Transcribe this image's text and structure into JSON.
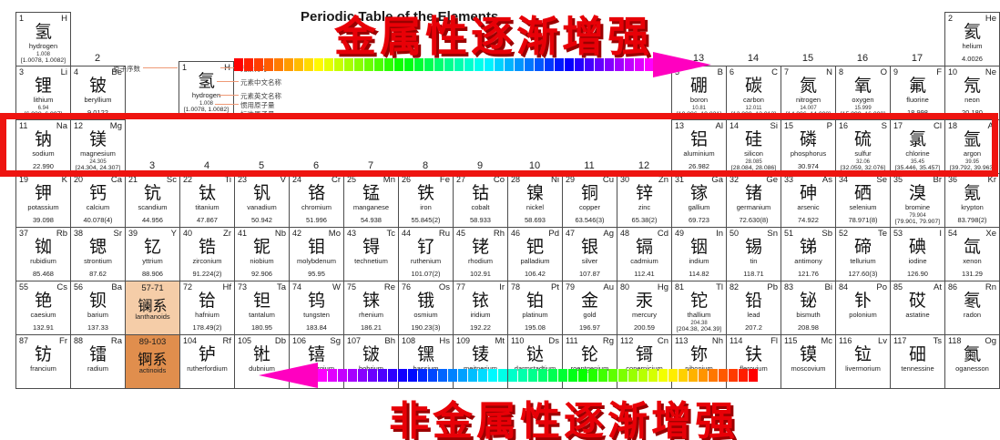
{
  "title": "Periodic Table of the Elements",
  "annotations": {
    "top_text": "金属性逐渐增强",
    "bottom_text": "非金属性逐渐增强",
    "top_arrow_direction": "right",
    "bottom_arrow_direction": "left",
    "text_color": "#e80007",
    "highlight_box_color": "#ee1410"
  },
  "legend": {
    "atomic_number_label": "原子序数",
    "symbol_label": "元素符号",
    "zh_name_label": "元素中文名称",
    "en_name_label": "元素英文名称",
    "conventional_mass_label": "惯用原子量",
    "standard_mass_label": "标准原子量",
    "sample": {
      "z": "1",
      "symbol": "H",
      "zh": "氢",
      "en": "hydrogen",
      "mass": "1.008",
      "mass_interval": "[1.0078, 1.0082]"
    }
  },
  "group_labels_row2": [
    {
      "g": 2,
      "label": "2"
    },
    {
      "g": 13,
      "label": "13"
    },
    {
      "g": 14,
      "label": "14"
    },
    {
      "g": 15,
      "label": "15"
    },
    {
      "g": 16,
      "label": "16"
    },
    {
      "g": 17,
      "label": "17"
    }
  ],
  "group_labels_row4": [
    {
      "g": 3,
      "label": "3"
    },
    {
      "g": 4,
      "label": "4"
    },
    {
      "g": 5,
      "label": "5"
    },
    {
      "g": 6,
      "label": "6"
    },
    {
      "g": 7,
      "label": "7"
    },
    {
      "g": 8,
      "label": "8"
    },
    {
      "g": 9,
      "label": "9"
    },
    {
      "g": 10,
      "label": "10"
    },
    {
      "g": 11,
      "label": "11"
    },
    {
      "g": 12,
      "label": "12"
    }
  ],
  "series_cells": [
    {
      "p": 6,
      "g": 3,
      "range": "57-71",
      "zh": "镧系",
      "en": "lanthanoids",
      "bg": "#f5cda8"
    },
    {
      "p": 7,
      "g": 3,
      "range": "89-103",
      "zh": "锕系",
      "en": "actinoids",
      "bg": "#e08e4d"
    }
  ],
  "elements": [
    {
      "p": 1,
      "g": 1,
      "z": "1",
      "s": "H",
      "zh": "氢",
      "en": "hydrogen",
      "m": "1.008",
      "mi": "[1.0078, 1.0082]"
    },
    {
      "p": 1,
      "g": 18,
      "z": "2",
      "s": "He",
      "zh": "氦",
      "en": "helium",
      "m": "4.0026"
    },
    {
      "p": 2,
      "g": 1,
      "z": "3",
      "s": "Li",
      "zh": "锂",
      "en": "lithium",
      "m": "6.94",
      "mi": "[6.938, 6.997]"
    },
    {
      "p": 2,
      "g": 2,
      "z": "4",
      "s": "Be",
      "zh": "铍",
      "en": "beryllium",
      "m": "9.0122"
    },
    {
      "p": 2,
      "g": 13,
      "z": "5",
      "s": "B",
      "zh": "硼",
      "en": "boron",
      "m": "10.81",
      "mi": "[10.806, 10.821]"
    },
    {
      "p": 2,
      "g": 14,
      "z": "6",
      "s": "C",
      "zh": "碳",
      "en": "carbon",
      "m": "12.011",
      "mi": "[12.009, 12.012]"
    },
    {
      "p": 2,
      "g": 15,
      "z": "7",
      "s": "N",
      "zh": "氮",
      "en": "nitrogen",
      "m": "14.007",
      "mi": "[14.006, 14.008]"
    },
    {
      "p": 2,
      "g": 16,
      "z": "8",
      "s": "O",
      "zh": "氧",
      "en": "oxygen",
      "m": "15.999",
      "mi": "[15.999, 16.000]"
    },
    {
      "p": 2,
      "g": 17,
      "z": "9",
      "s": "F",
      "zh": "氟",
      "en": "fluorine",
      "m": "18.998"
    },
    {
      "p": 2,
      "g": 18,
      "z": "10",
      "s": "Ne",
      "zh": "氖",
      "en": "neon",
      "m": "20.180"
    },
    {
      "p": 3,
      "g": 1,
      "z": "11",
      "s": "Na",
      "zh": "钠",
      "en": "sodium",
      "m": "22.990"
    },
    {
      "p": 3,
      "g": 2,
      "z": "12",
      "s": "Mg",
      "zh": "镁",
      "en": "magnesium",
      "m": "24.305",
      "mi": "[24.304, 24.307]"
    },
    {
      "p": 3,
      "g": 13,
      "z": "13",
      "s": "Al",
      "zh": "铝",
      "en": "aluminium",
      "m": "26.982"
    },
    {
      "p": 3,
      "g": 14,
      "z": "14",
      "s": "Si",
      "zh": "硅",
      "en": "silicon",
      "m": "28.085",
      "mi": "[28.084, 28.086]"
    },
    {
      "p": 3,
      "g": 15,
      "z": "15",
      "s": "P",
      "zh": "磷",
      "en": "phosphorus",
      "m": "30.974"
    },
    {
      "p": 3,
      "g": 16,
      "z": "16",
      "s": "S",
      "zh": "硫",
      "en": "sulfur",
      "m": "32.06",
      "mi": "[32.059, 32.076]"
    },
    {
      "p": 3,
      "g": 17,
      "z": "17",
      "s": "Cl",
      "zh": "氯",
      "en": "chlorine",
      "m": "35.45",
      "mi": "[35.446, 35.457]"
    },
    {
      "p": 3,
      "g": 18,
      "z": "18",
      "s": "Ar",
      "zh": "氩",
      "en": "argon",
      "m": "39.95",
      "mi": "[39.792, 39.963]"
    },
    {
      "p": 4,
      "g": 1,
      "z": "19",
      "s": "K",
      "zh": "钾",
      "en": "potassium",
      "m": "39.098"
    },
    {
      "p": 4,
      "g": 2,
      "z": "20",
      "s": "Ca",
      "zh": "钙",
      "en": "calcium",
      "m": "40.078(4)"
    },
    {
      "p": 4,
      "g": 3,
      "z": "21",
      "s": "Sc",
      "zh": "钪",
      "en": "scandium",
      "m": "44.956"
    },
    {
      "p": 4,
      "g": 4,
      "z": "22",
      "s": "Ti",
      "zh": "钛",
      "en": "titanium",
      "m": "47.867"
    },
    {
      "p": 4,
      "g": 5,
      "z": "23",
      "s": "V",
      "zh": "钒",
      "en": "vanadium",
      "m": "50.942"
    },
    {
      "p": 4,
      "g": 6,
      "z": "24",
      "s": "Cr",
      "zh": "铬",
      "en": "chromium",
      "m": "51.996"
    },
    {
      "p": 4,
      "g": 7,
      "z": "25",
      "s": "Mn",
      "zh": "锰",
      "en": "manganese",
      "m": "54.938"
    },
    {
      "p": 4,
      "g": 8,
      "z": "26",
      "s": "Fe",
      "zh": "铁",
      "en": "iron",
      "m": "55.845(2)"
    },
    {
      "p": 4,
      "g": 9,
      "z": "27",
      "s": "Co",
      "zh": "钴",
      "en": "cobalt",
      "m": "58.933"
    },
    {
      "p": 4,
      "g": 10,
      "z": "28",
      "s": "Ni",
      "zh": "镍",
      "en": "nickel",
      "m": "58.693"
    },
    {
      "p": 4,
      "g": 11,
      "z": "29",
      "s": "Cu",
      "zh": "铜",
      "en": "copper",
      "m": "63.546(3)"
    },
    {
      "p": 4,
      "g": 12,
      "z": "30",
      "s": "Zn",
      "zh": "锌",
      "en": "zinc",
      "m": "65.38(2)"
    },
    {
      "p": 4,
      "g": 13,
      "z": "31",
      "s": "Ga",
      "zh": "镓",
      "en": "gallium",
      "m": "69.723"
    },
    {
      "p": 4,
      "g": 14,
      "z": "32",
      "s": "Ge",
      "zh": "锗",
      "en": "germanium",
      "m": "72.630(8)"
    },
    {
      "p": 4,
      "g": 15,
      "z": "33",
      "s": "As",
      "zh": "砷",
      "en": "arsenic",
      "m": "74.922"
    },
    {
      "p": 4,
      "g": 16,
      "z": "34",
      "s": "Se",
      "zh": "硒",
      "en": "selenium",
      "m": "78.971(8)"
    },
    {
      "p": 4,
      "g": 17,
      "z": "35",
      "s": "Br",
      "zh": "溴",
      "en": "bromine",
      "m": "79.904",
      "mi": "[79.901, 79.907]"
    },
    {
      "p": 4,
      "g": 18,
      "z": "36",
      "s": "Kr",
      "zh": "氪",
      "en": "krypton",
      "m": "83.798(2)"
    },
    {
      "p": 5,
      "g": 1,
      "z": "37",
      "s": "Rb",
      "zh": "铷",
      "en": "rubidium",
      "m": "85.468"
    },
    {
      "p": 5,
      "g": 2,
      "z": "38",
      "s": "Sr",
      "zh": "锶",
      "en": "strontium",
      "m": "87.62"
    },
    {
      "p": 5,
      "g": 3,
      "z": "39",
      "s": "Y",
      "zh": "钇",
      "en": "yttrium",
      "m": "88.906"
    },
    {
      "p": 5,
      "g": 4,
      "z": "40",
      "s": "Zr",
      "zh": "锆",
      "en": "zirconium",
      "m": "91.224(2)"
    },
    {
      "p": 5,
      "g": 5,
      "z": "41",
      "s": "Nb",
      "zh": "铌",
      "en": "niobium",
      "m": "92.906"
    },
    {
      "p": 5,
      "g": 6,
      "z": "42",
      "s": "Mo",
      "zh": "钼",
      "en": "molybdenum",
      "m": "95.95"
    },
    {
      "p": 5,
      "g": 7,
      "z": "43",
      "s": "Tc",
      "zh": "锝",
      "en": "technetium"
    },
    {
      "p": 5,
      "g": 8,
      "z": "44",
      "s": "Ru",
      "zh": "钌",
      "en": "ruthenium",
      "m": "101.07(2)"
    },
    {
      "p": 5,
      "g": 9,
      "z": "45",
      "s": "Rh",
      "zh": "铑",
      "en": "rhodium",
      "m": "102.91"
    },
    {
      "p": 5,
      "g": 10,
      "z": "46",
      "s": "Pd",
      "zh": "钯",
      "en": "palladium",
      "m": "106.42"
    },
    {
      "p": 5,
      "g": 11,
      "z": "47",
      "s": "Ag",
      "zh": "银",
      "en": "silver",
      "m": "107.87"
    },
    {
      "p": 5,
      "g": 12,
      "z": "48",
      "s": "Cd",
      "zh": "镉",
      "en": "cadmium",
      "m": "112.41"
    },
    {
      "p": 5,
      "g": 13,
      "z": "49",
      "s": "In",
      "zh": "铟",
      "en": "indium",
      "m": "114.82"
    },
    {
      "p": 5,
      "g": 14,
      "z": "50",
      "s": "Sn",
      "zh": "锡",
      "en": "tin",
      "m": "118.71"
    },
    {
      "p": 5,
      "g": 15,
      "z": "51",
      "s": "Sb",
      "zh": "锑",
      "en": "antimony",
      "m": "121.76"
    },
    {
      "p": 5,
      "g": 16,
      "z": "52",
      "s": "Te",
      "zh": "碲",
      "en": "tellurium",
      "m": "127.60(3)"
    },
    {
      "p": 5,
      "g": 17,
      "z": "53",
      "s": "I",
      "zh": "碘",
      "en": "iodine",
      "m": "126.90"
    },
    {
      "p": 5,
      "g": 18,
      "z": "54",
      "s": "Xe",
      "zh": "氙",
      "en": "xenon",
      "m": "131.29"
    },
    {
      "p": 6,
      "g": 1,
      "z": "55",
      "s": "Cs",
      "zh": "铯",
      "en": "caesium",
      "m": "132.91"
    },
    {
      "p": 6,
      "g": 2,
      "z": "56",
      "s": "Ba",
      "zh": "钡",
      "en": "barium",
      "m": "137.33"
    },
    {
      "p": 6,
      "g": 4,
      "z": "72",
      "s": "Hf",
      "zh": "铪",
      "en": "hafnium",
      "m": "178.49(2)"
    },
    {
      "p": 6,
      "g": 5,
      "z": "73",
      "s": "Ta",
      "zh": "钽",
      "en": "tantalum",
      "m": "180.95"
    },
    {
      "p": 6,
      "g": 6,
      "z": "74",
      "s": "W",
      "zh": "钨",
      "en": "tungsten",
      "m": "183.84"
    },
    {
      "p": 6,
      "g": 7,
      "z": "75",
      "s": "Re",
      "zh": "铼",
      "en": "rhenium",
      "m": "186.21"
    },
    {
      "p": 6,
      "g": 8,
      "z": "76",
      "s": "Os",
      "zh": "锇",
      "en": "osmium",
      "m": "190.23(3)"
    },
    {
      "p": 6,
      "g": 9,
      "z": "77",
      "s": "Ir",
      "zh": "铱",
      "en": "iridium",
      "m": "192.22"
    },
    {
      "p": 6,
      "g": 10,
      "z": "78",
      "s": "Pt",
      "zh": "铂",
      "en": "platinum",
      "m": "195.08"
    },
    {
      "p": 6,
      "g": 11,
      "z": "79",
      "s": "Au",
      "zh": "金",
      "en": "gold",
      "m": "196.97"
    },
    {
      "p": 6,
      "g": 12,
      "z": "80",
      "s": "Hg",
      "zh": "汞",
      "en": "mercury",
      "m": "200.59"
    },
    {
      "p": 6,
      "g": 13,
      "z": "81",
      "s": "Tl",
      "zh": "铊",
      "en": "thallium",
      "m": "204.38",
      "mi": "[204.38, 204.39]"
    },
    {
      "p": 6,
      "g": 14,
      "z": "82",
      "s": "Pb",
      "zh": "铅",
      "en": "lead",
      "m": "207.2"
    },
    {
      "p": 6,
      "g": 15,
      "z": "83",
      "s": "Bi",
      "zh": "铋",
      "en": "bismuth",
      "m": "208.98"
    },
    {
      "p": 6,
      "g": 16,
      "z": "84",
      "s": "Po",
      "zh": "钋",
      "en": "polonium"
    },
    {
      "p": 6,
      "g": 17,
      "z": "85",
      "s": "At",
      "zh": "砹",
      "en": "astatine"
    },
    {
      "p": 6,
      "g": 18,
      "z": "86",
      "s": "Rn",
      "zh": "氡",
      "en": "radon"
    },
    {
      "p": 7,
      "g": 1,
      "z": "87",
      "s": "Fr",
      "zh": "钫",
      "en": "francium"
    },
    {
      "p": 7,
      "g": 2,
      "z": "88",
      "s": "Ra",
      "zh": "镭",
      "en": "radium"
    },
    {
      "p": 7,
      "g": 4,
      "z": "104",
      "s": "Rf",
      "zh": "𬬻",
      "en": "rutherfordium"
    },
    {
      "p": 7,
      "g": 5,
      "z": "105",
      "s": "Db",
      "zh": "𬭊",
      "en": "dubnium"
    },
    {
      "p": 7,
      "g": 6,
      "z": "106",
      "s": "Sg",
      "zh": "𬭳",
      "en": "seaborgium"
    },
    {
      "p": 7,
      "g": 7,
      "z": "107",
      "s": "Bh",
      "zh": "𬭛",
      "en": "bohrium"
    },
    {
      "p": 7,
      "g": 8,
      "z": "108",
      "s": "Hs",
      "zh": "𬭶",
      "en": "hassium"
    },
    {
      "p": 7,
      "g": 9,
      "z": "109",
      "s": "Mt",
      "zh": "鿏",
      "en": "meitnerium"
    },
    {
      "p": 7,
      "g": 10,
      "z": "110",
      "s": "Ds",
      "zh": "𫟼",
      "en": "darmstadtium"
    },
    {
      "p": 7,
      "g": 11,
      "z": "111",
      "s": "Rg",
      "zh": "𬬭",
      "en": "roentgenium"
    },
    {
      "p": 7,
      "g": 12,
      "z": "112",
      "s": "Cn",
      "zh": "鿔",
      "en": "copernicium"
    },
    {
      "p": 7,
      "g": 13,
      "z": "113",
      "s": "Nh",
      "zh": "鿭",
      "en": "nihonium"
    },
    {
      "p": 7,
      "g": 14,
      "z": "114",
      "s": "Fl",
      "zh": "𫓧",
      "en": "flerovium"
    },
    {
      "p": 7,
      "g": 15,
      "z": "115",
      "s": "Mc",
      "zh": "镆",
      "en": "moscovium"
    },
    {
      "p": 7,
      "g": 16,
      "z": "116",
      "s": "Lv",
      "zh": "𫟷",
      "en": "livermorium"
    },
    {
      "p": 7,
      "g": 17,
      "z": "117",
      "s": "Ts",
      "zh": "鿬",
      "en": "tennessine"
    },
    {
      "p": 7,
      "g": 18,
      "z": "118",
      "s": "Og",
      "zh": "鿫",
      "en": "oganesson"
    }
  ]
}
